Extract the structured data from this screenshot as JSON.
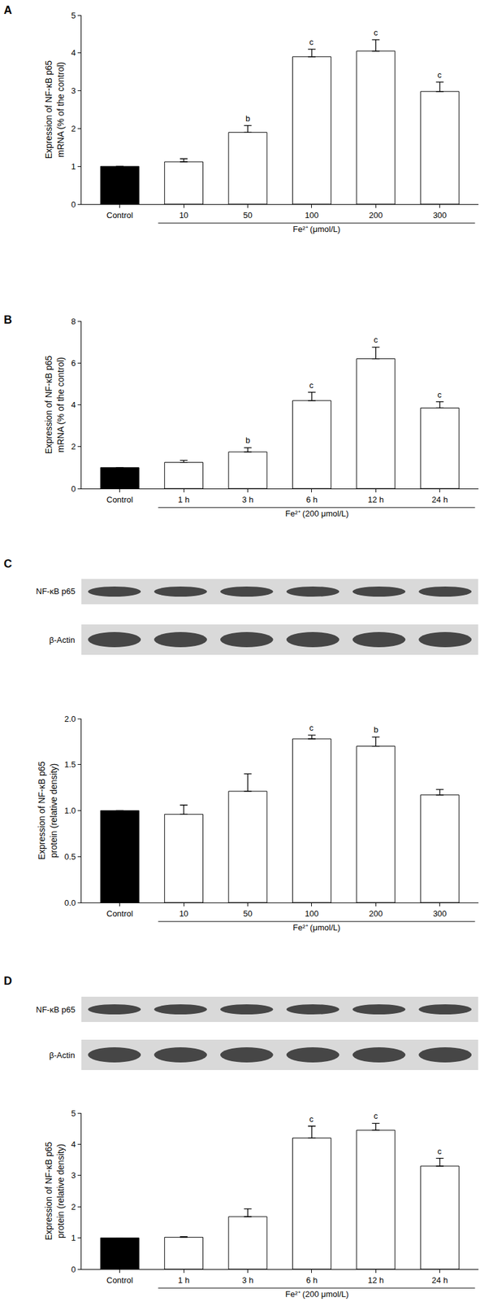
{
  "chart_data": [
    {
      "type": "bar",
      "title": "A",
      "categories": [
        "Control",
        "10",
        "50",
        "100",
        "200",
        "300"
      ],
      "values": [
        1,
        1.12,
        1.9,
        3.9,
        4.05,
        2.98
      ],
      "errors": [
        0,
        0.08,
        0.18,
        0.2,
        0.3,
        0.25
      ],
      "significance": [
        null,
        null,
        "b",
        "c",
        "c",
        "c"
      ],
      "xlabel": "Fe²⁺ (μmol/L)",
      "ylabel": [
        "Expression of NF-κB p65",
        "mRNA (% of the control)"
      ],
      "ylim": [
        0,
        5
      ],
      "yticks": [
        0,
        1,
        2,
        3,
        4,
        5
      ],
      "colors": [
        "#000000",
        "#ffffff",
        "#ffffff",
        "#ffffff",
        "#ffffff",
        "#ffffff"
      ]
    },
    {
      "type": "bar",
      "title": "B",
      "categories": [
        "Control",
        "1 h",
        "3 h",
        "6 h",
        "12 h",
        "24 h"
      ],
      "values": [
        1,
        1.25,
        1.75,
        4.2,
        6.2,
        3.85
      ],
      "errors": [
        0,
        0.1,
        0.2,
        0.4,
        0.55,
        0.3
      ],
      "significance": [
        null,
        null,
        "b",
        "c",
        "c",
        "c"
      ],
      "xlabel": "Fe²⁺ (200 μmol/L)",
      "ylabel": [
        "Expression of NF-κB p65",
        "mRNA (% of the control)"
      ],
      "ylim": [
        0,
        8
      ],
      "yticks": [
        0,
        2,
        4,
        6,
        8
      ],
      "colors": [
        "#000000",
        "#ffffff",
        "#ffffff",
        "#ffffff",
        "#ffffff",
        "#ffffff"
      ]
    },
    {
      "type": "bar",
      "title": "C",
      "categories": [
        "Control",
        "10",
        "50",
        "100",
        "200",
        "300"
      ],
      "values": [
        1,
        0.96,
        1.21,
        1.78,
        1.7,
        1.17
      ],
      "errors": [
        0,
        0.1,
        0.19,
        0.04,
        0.1,
        0.06
      ],
      "significance": [
        null,
        null,
        null,
        "c",
        "b",
        null
      ],
      "xlabel": "Fe²⁺ (μmol/L)",
      "ylabel": [
        "Expression of NF-κB p65",
        "protein (relative density)"
      ],
      "ylim": [
        0,
        2
      ],
      "yticks": [
        {
          "value": 0,
          "label": "0.0"
        },
        {
          "value": 0.5,
          "label": "0.5"
        },
        {
          "value": 1,
          "label": "1.0"
        },
        {
          "value": 1.5,
          "label": "1.5"
        },
        {
          "value": 2,
          "label": "2.0"
        }
      ],
      "colors": [
        "#000000",
        "#ffffff",
        "#ffffff",
        "#ffffff",
        "#ffffff",
        "#ffffff"
      ],
      "annotations": [
        "NF-κB p65",
        "β-Actin"
      ]
    },
    {
      "type": "bar",
      "title": "D",
      "categories": [
        "Control",
        "1 h",
        "3 h",
        "6 h",
        "12 h",
        "24 h"
      ],
      "values": [
        1,
        1.02,
        1.68,
        4.2,
        4.45,
        3.3
      ],
      "errors": [
        0,
        0.02,
        0.25,
        0.38,
        0.22,
        0.25
      ],
      "significance": [
        null,
        null,
        null,
        "c",
        "c",
        "c"
      ],
      "xlabel": "Fe²⁺ (200 μmol/L)",
      "ylabel": [
        "Expression of NF-κB p65",
        "protein (relative density)"
      ],
      "ylim": [
        0,
        5
      ],
      "yticks": [
        0,
        1,
        2,
        3,
        4,
        5
      ],
      "colors": [
        "#000000",
        "#ffffff",
        "#ffffff",
        "#ffffff",
        "#ffffff",
        "#ffffff"
      ],
      "annotations": [
        "NF-κB p65",
        "β-Actin"
      ]
    }
  ]
}
